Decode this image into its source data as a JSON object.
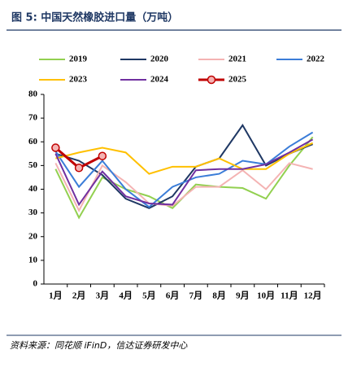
{
  "chart_data": {
    "type": "line",
    "title": "图 5:  中国天然橡胶进口量（万吨）",
    "categories": [
      "1月",
      "2月",
      "3月",
      "4月",
      "5月",
      "6月",
      "7月",
      "8月",
      "9月",
      "10月",
      "11月",
      "12月"
    ],
    "series": [
      {
        "name": "2019",
        "color": "#92d050",
        "values": [
          48.5,
          28,
          45,
          40,
          37,
          32,
          42,
          41,
          40.5,
          36,
          50,
          62
        ]
      },
      {
        "name": "2020",
        "color": "#1f3864",
        "values": [
          55,
          52,
          46,
          36,
          32,
          37,
          49.5,
          53,
          67,
          50,
          55,
          59
        ]
      },
      {
        "name": "2021",
        "color": "#f4b3b3",
        "values": [
          51,
          31,
          50,
          43,
          34,
          33,
          41,
          41,
          48,
          40,
          51,
          48.5
        ]
      },
      {
        "name": "2022",
        "color": "#3b7dd8",
        "values": [
          56,
          41,
          52,
          40,
          32.5,
          41,
          45,
          46.5,
          52,
          50.5,
          58,
          64
        ]
      },
      {
        "name": "2023",
        "color": "#ffc000",
        "values": [
          53,
          55.5,
          57.5,
          55.5,
          46.5,
          49.5,
          49.5,
          53,
          48.5,
          48.5,
          55,
          59.5
        ]
      },
      {
        "name": "2024",
        "color": "#7030a0",
        "values": [
          55,
          33.5,
          47.5,
          37,
          34,
          33.5,
          48,
          48.5,
          48.5,
          50.5,
          55.5,
          61
        ]
      },
      {
        "name": "2025",
        "color": "#c00000",
        "markers": true,
        "values": [
          57.5,
          49,
          54,
          null,
          null,
          null,
          null,
          null,
          null,
          null,
          null,
          null
        ]
      }
    ],
    "ylim": [
      0,
      80
    ],
    "yticks": [
      0,
      10,
      20,
      30,
      40,
      50,
      60,
      70,
      80
    ],
    "source": "资料来源：同花顺 iFinD，信达证券研发中心"
  }
}
